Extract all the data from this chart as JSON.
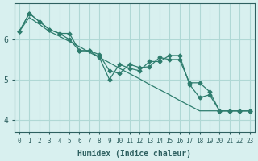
{
  "x": [
    0,
    1,
    2,
    3,
    4,
    5,
    6,
    7,
    8,
    9,
    10,
    11,
    12,
    13,
    14,
    15,
    16,
    17,
    18,
    19,
    20,
    21,
    22,
    23
  ],
  "line1": [
    6.2,
    6.65,
    6.45,
    6.25,
    6.15,
    6.15,
    5.72,
    5.72,
    5.62,
    5.22,
    5.15,
    5.38,
    5.3,
    5.32,
    5.55,
    5.5,
    5.5,
    4.92,
    4.92,
    4.7,
    4.22,
    4.22,
    4.22,
    4.22
  ],
  "line2": [
    6.2,
    6.65,
    6.45,
    6.25,
    6.15,
    6.0,
    5.72,
    5.72,
    5.55,
    5.0,
    5.38,
    5.28,
    5.22,
    5.45,
    5.45,
    5.6,
    5.6,
    4.88,
    4.55,
    4.62,
    4.22,
    4.22,
    4.22,
    4.22
  ],
  "line3_trend": [
    6.2,
    6.55,
    6.38,
    6.2,
    6.08,
    5.95,
    5.82,
    5.68,
    5.55,
    5.42,
    5.28,
    5.15,
    5.02,
    4.88,
    4.75,
    4.62,
    4.48,
    4.35,
    4.22,
    4.22,
    4.22,
    4.22,
    4.22,
    4.22
  ],
  "bg_color": "#d8f0ef",
  "line_color": "#2e7d6e",
  "grid_color": "#b0d8d5",
  "tick_label_color": "#2e6060",
  "xlabel": "Humidex (Indice chaleur)",
  "yticks": [
    4,
    5,
    6
  ],
  "xlim": [
    -0.5,
    23.5
  ],
  "ylim": [
    3.7,
    6.9
  ]
}
